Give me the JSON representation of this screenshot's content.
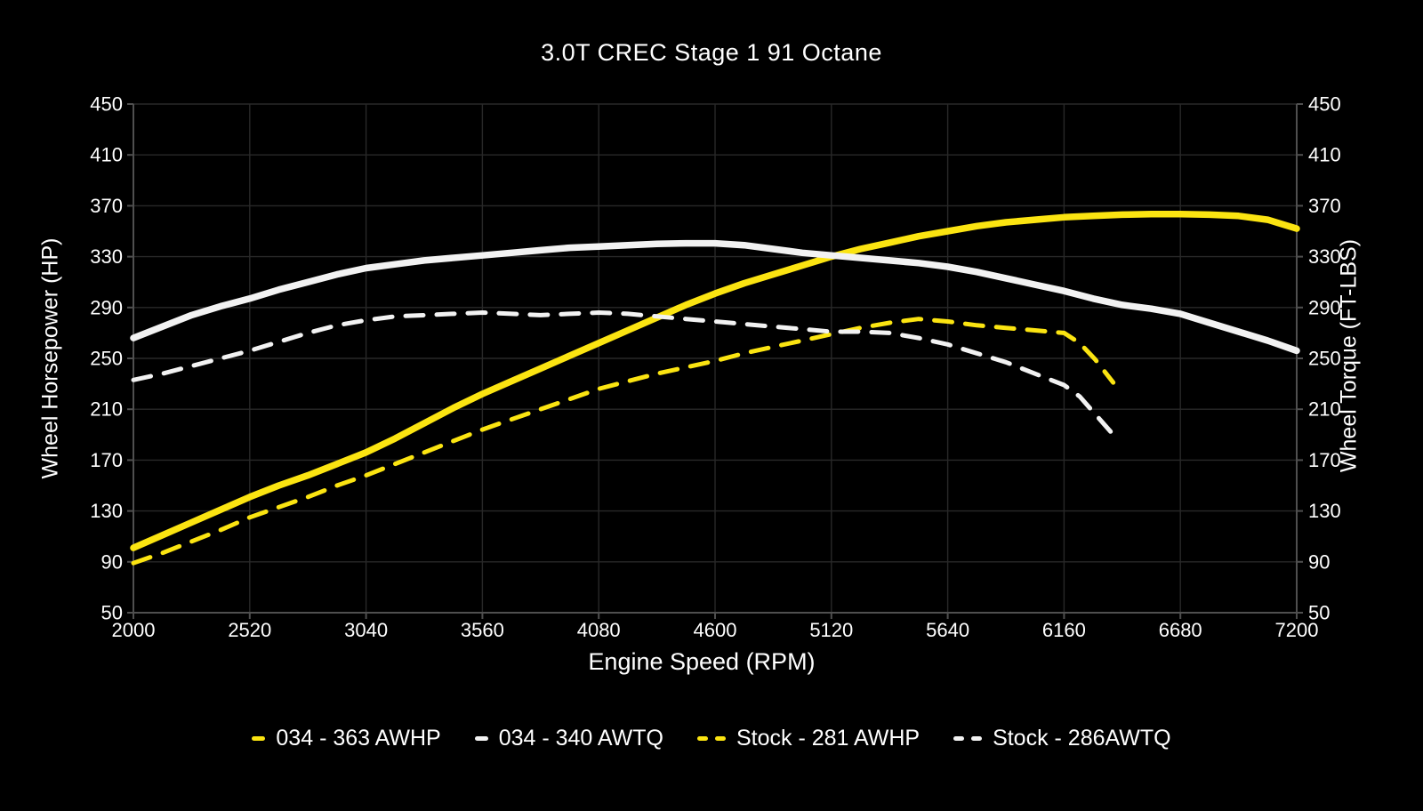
{
  "title": "3.0T CREC Stage 1 91 Octane",
  "colors": {
    "background": "#000000",
    "yellow_curve": "#fbe411",
    "white_curve": "#f2f2f2",
    "grid": "#282828",
    "axis": "#4f4f4f",
    "text": "#ffffff"
  },
  "chart_data": {
    "type": "line",
    "title": "3.0T CREC Stage 1 91 Octane",
    "xlabel": "Engine Speed (RPM)",
    "ylabel_left": "Wheel Horsepower (HP)",
    "ylabel_right": "Wheel Torque (FT-LBS)",
    "xlim": [
      2000,
      7200
    ],
    "ylim": [
      50,
      450
    ],
    "x_ticks": [
      2000,
      2520,
      3040,
      3560,
      4080,
      4600,
      5120,
      5640,
      6160,
      6680,
      7200
    ],
    "y_ticks": [
      50,
      90,
      130,
      170,
      210,
      250,
      290,
      330,
      370,
      410,
      450
    ],
    "grid": true,
    "legend_position": "bottom",
    "series": [
      {
        "name": "034 - 363 AWHP",
        "color": "#fbe411",
        "style": "solid",
        "width": 7.5,
        "points": [
          [
            2000,
            101
          ],
          [
            2130,
            111
          ],
          [
            2260,
            121
          ],
          [
            2390,
            131
          ],
          [
            2520,
            141
          ],
          [
            2650,
            150
          ],
          [
            2780,
            158
          ],
          [
            2910,
            167
          ],
          [
            3040,
            176
          ],
          [
            3170,
            187
          ],
          [
            3300,
            199
          ],
          [
            3430,
            211
          ],
          [
            3560,
            222
          ],
          [
            3690,
            232
          ],
          [
            3820,
            242
          ],
          [
            3950,
            252
          ],
          [
            4080,
            262
          ],
          [
            4210,
            272
          ],
          [
            4340,
            282
          ],
          [
            4470,
            292
          ],
          [
            4600,
            301
          ],
          [
            4730,
            309
          ],
          [
            4860,
            316
          ],
          [
            4990,
            323
          ],
          [
            5120,
            330
          ],
          [
            5250,
            336
          ],
          [
            5380,
            341
          ],
          [
            5510,
            346
          ],
          [
            5640,
            350
          ],
          [
            5770,
            354
          ],
          [
            5900,
            357
          ],
          [
            6030,
            359
          ],
          [
            6160,
            361
          ],
          [
            6290,
            362
          ],
          [
            6420,
            363
          ],
          [
            6550,
            363.5
          ],
          [
            6680,
            363.5
          ],
          [
            6810,
            363
          ],
          [
            6940,
            362
          ],
          [
            7070,
            359
          ],
          [
            7200,
            352
          ]
        ]
      },
      {
        "name": "034 - 340 AWTQ",
        "color": "#f2f2f2",
        "style": "solid",
        "width": 7.5,
        "points": [
          [
            2000,
            266
          ],
          [
            2130,
            275
          ],
          [
            2260,
            284
          ],
          [
            2390,
            291
          ],
          [
            2520,
            297
          ],
          [
            2650,
            304
          ],
          [
            2780,
            310
          ],
          [
            2910,
            316
          ],
          [
            3040,
            321
          ],
          [
            3170,
            324
          ],
          [
            3300,
            327
          ],
          [
            3430,
            329
          ],
          [
            3560,
            331
          ],
          [
            3690,
            333
          ],
          [
            3820,
            335
          ],
          [
            3950,
            337
          ],
          [
            4080,
            338
          ],
          [
            4210,
            339
          ],
          [
            4340,
            340
          ],
          [
            4470,
            340.5
          ],
          [
            4600,
            340.5
          ],
          [
            4730,
            339
          ],
          [
            4860,
            336
          ],
          [
            4990,
            333
          ],
          [
            5120,
            331
          ],
          [
            5250,
            329
          ],
          [
            5380,
            327
          ],
          [
            5510,
            325
          ],
          [
            5640,
            322
          ],
          [
            5770,
            318
          ],
          [
            5900,
            313
          ],
          [
            6030,
            308
          ],
          [
            6160,
            303
          ],
          [
            6290,
            297
          ],
          [
            6420,
            292
          ],
          [
            6550,
            289
          ],
          [
            6680,
            285
          ],
          [
            6810,
            278
          ],
          [
            6940,
            271
          ],
          [
            7070,
            264
          ],
          [
            7200,
            256
          ]
        ]
      },
      {
        "name": "Stock - 281 AWHP",
        "color": "#fbe411",
        "style": "dashed",
        "width": 5,
        "points": [
          [
            2000,
            89
          ],
          [
            2130,
            97
          ],
          [
            2260,
            106
          ],
          [
            2390,
            115
          ],
          [
            2520,
            125
          ],
          [
            2650,
            133
          ],
          [
            2780,
            141
          ],
          [
            2910,
            150
          ],
          [
            3040,
            158
          ],
          [
            3170,
            167
          ],
          [
            3300,
            176
          ],
          [
            3430,
            185
          ],
          [
            3560,
            194
          ],
          [
            3690,
            202
          ],
          [
            3820,
            210
          ],
          [
            3950,
            218
          ],
          [
            4080,
            226
          ],
          [
            4210,
            232
          ],
          [
            4340,
            238
          ],
          [
            4470,
            243
          ],
          [
            4600,
            248
          ],
          [
            4730,
            254
          ],
          [
            4860,
            259
          ],
          [
            4990,
            264
          ],
          [
            5120,
            269
          ],
          [
            5250,
            274
          ],
          [
            5380,
            278
          ],
          [
            5510,
            281
          ],
          [
            5640,
            279
          ],
          [
            5770,
            276
          ],
          [
            5900,
            274
          ],
          [
            6030,
            272
          ],
          [
            6160,
            270
          ],
          [
            6230,
            262
          ],
          [
            6300,
            249
          ],
          [
            6380,
            231
          ]
        ]
      },
      {
        "name": "Stock - 286AWTQ",
        "color": "#f2f2f2",
        "style": "dashed",
        "width": 5,
        "points": [
          [
            2000,
            233
          ],
          [
            2130,
            238
          ],
          [
            2260,
            244
          ],
          [
            2390,
            250
          ],
          [
            2520,
            256
          ],
          [
            2650,
            263
          ],
          [
            2780,
            270
          ],
          [
            2910,
            276
          ],
          [
            3040,
            280
          ],
          [
            3170,
            283
          ],
          [
            3300,
            284
          ],
          [
            3430,
            285
          ],
          [
            3560,
            286
          ],
          [
            3690,
            285
          ],
          [
            3820,
            284
          ],
          [
            3950,
            285
          ],
          [
            4080,
            286
          ],
          [
            4210,
            285
          ],
          [
            4340,
            283
          ],
          [
            4470,
            281
          ],
          [
            4600,
            279
          ],
          [
            4730,
            277
          ],
          [
            4860,
            275
          ],
          [
            4990,
            273
          ],
          [
            5120,
            271
          ],
          [
            5250,
            271
          ],
          [
            5380,
            270
          ],
          [
            5510,
            266
          ],
          [
            5640,
            261
          ],
          [
            5770,
            254
          ],
          [
            5900,
            247
          ],
          [
            6030,
            238
          ],
          [
            6160,
            229
          ],
          [
            6230,
            220
          ],
          [
            6300,
            206
          ],
          [
            6385,
            189
          ]
        ]
      }
    ]
  }
}
